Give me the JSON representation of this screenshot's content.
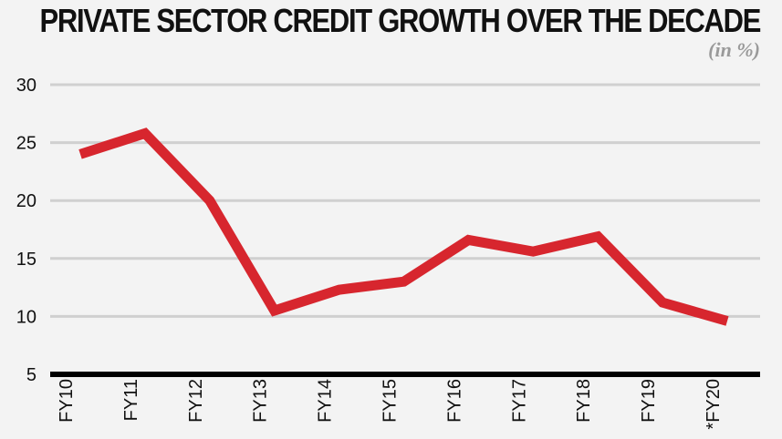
{
  "chart_data": {
    "type": "line",
    "title": "PRIVATE SECTOR CREDIT GROWTH OVER THE DECADE",
    "subtitle": "(in %)",
    "categories": [
      "FY10",
      "FY11",
      "FY12",
      "FY13",
      "FY14",
      "FY15",
      "FY16",
      "FY17",
      "FY18",
      "FY19",
      "*FY20"
    ],
    "series": [
      {
        "values": [
          24.0,
          25.8,
          20.0,
          10.5,
          12.3,
          13.0,
          16.6,
          15.6,
          16.9,
          11.2,
          9.6
        ],
        "color": "#d7262e"
      }
    ],
    "ylim": [
      5,
      30
    ],
    "yticks": [
      5,
      10,
      15,
      20,
      25,
      30
    ],
    "grid": true,
    "colors": {
      "line": "#d7262e",
      "grid": "#d0d0d0",
      "axis": "#000000",
      "background": "#f3f3f3"
    }
  }
}
